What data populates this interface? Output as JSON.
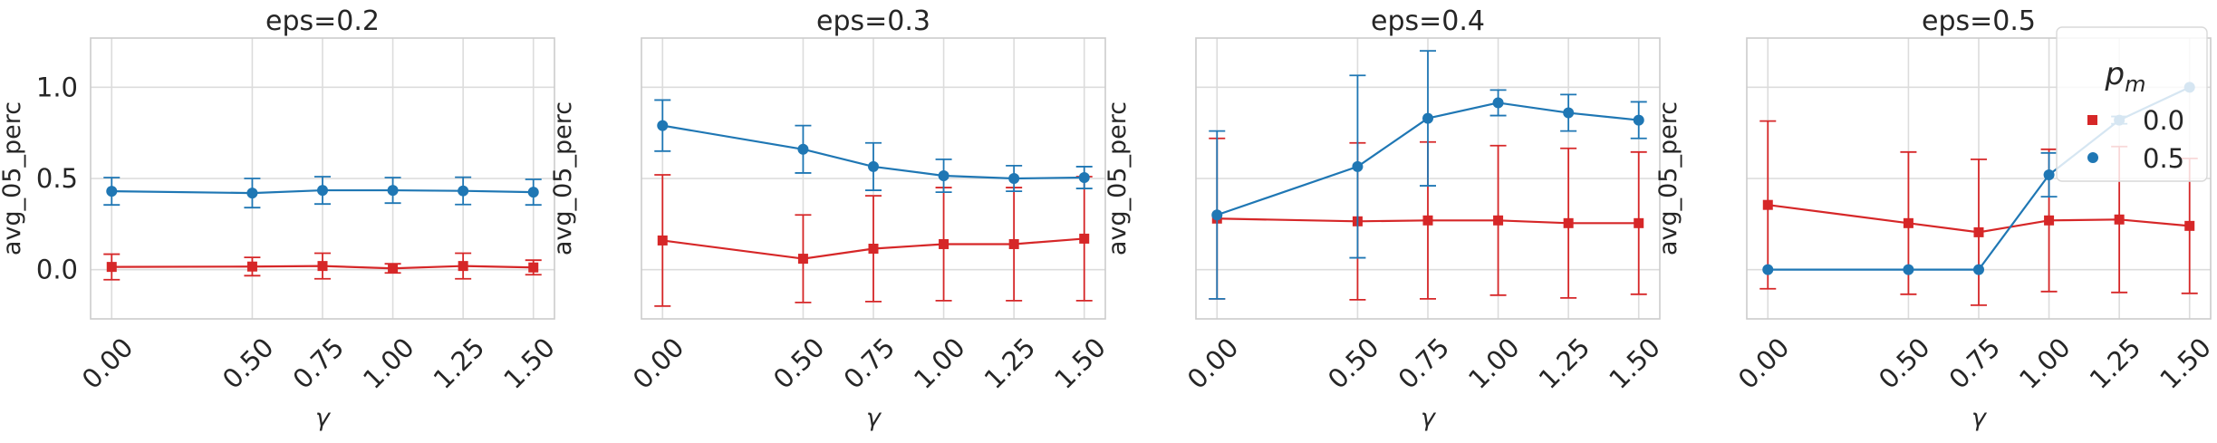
{
  "colors": {
    "series_0.0": "#d62728",
    "series_0.5": "#1f77b4",
    "grid": "#dcdcdc",
    "frame": "#cccccc"
  },
  "legend": {
    "title_base": "p",
    "title_sub": "m",
    "labels": [
      "0.0",
      "0.5"
    ],
    "placement": "upper-right of last panel"
  },
  "chart_data": [
    {
      "type": "line",
      "title": "eps=0.2",
      "xlabel": "γ",
      "ylabel": "avg_05_perc",
      "x": [
        0.0,
        0.5,
        0.75,
        1.0,
        1.25,
        1.5
      ],
      "x_tick_labels": [
        "0.00",
        "0.50",
        "0.75",
        "1.00",
        "1.25",
        "1.50"
      ],
      "y_tick_labels": [
        "0.0",
        "0.5",
        "1.0"
      ],
      "y_ticks": [
        0.0,
        0.5,
        1.0
      ],
      "ylim": [
        -0.27,
        1.27
      ],
      "grid": true,
      "series": [
        {
          "name": "0.0",
          "marker": "square",
          "values": [
            0.015,
            0.017,
            0.02,
            0.007,
            0.02,
            0.012
          ],
          "err": [
            0.07,
            0.05,
            0.07,
            0.025,
            0.07,
            0.04
          ]
        },
        {
          "name": "0.5",
          "marker": "circle",
          "values": [
            0.43,
            0.42,
            0.435,
            0.435,
            0.432,
            0.425
          ],
          "err": [
            0.075,
            0.08,
            0.075,
            0.07,
            0.075,
            0.07
          ]
        }
      ]
    },
    {
      "type": "line",
      "title": "eps=0.3",
      "xlabel": "γ",
      "ylabel": "avg_05_perc",
      "x": [
        0.0,
        0.5,
        0.75,
        1.0,
        1.25,
        1.5
      ],
      "x_tick_labels": [
        "0.00",
        "0.50",
        "0.75",
        "1.00",
        "1.25",
        "1.50"
      ],
      "y_tick_labels": [],
      "y_ticks": [
        0.0,
        0.5,
        1.0
      ],
      "ylim": [
        -0.27,
        1.27
      ],
      "grid": true,
      "series": [
        {
          "name": "0.0",
          "marker": "square",
          "values": [
            0.16,
            0.06,
            0.115,
            0.14,
            0.14,
            0.17
          ],
          "err": [
            0.36,
            0.24,
            0.29,
            0.31,
            0.31,
            0.34
          ]
        },
        {
          "name": "0.5",
          "marker": "circle",
          "values": [
            0.79,
            0.66,
            0.565,
            0.515,
            0.5,
            0.505
          ],
          "err": [
            0.14,
            0.13,
            0.13,
            0.09,
            0.07,
            0.06
          ]
        }
      ]
    },
    {
      "type": "line",
      "title": "eps=0.4",
      "xlabel": "γ",
      "ylabel": "avg_05_perc",
      "x": [
        0.0,
        0.5,
        0.75,
        1.0,
        1.25,
        1.5
      ],
      "x_tick_labels": [
        "0.00",
        "0.50",
        "0.75",
        "1.00",
        "1.25",
        "1.50"
      ],
      "y_tick_labels": [],
      "y_ticks": [
        0.0,
        0.5,
        1.0
      ],
      "ylim": [
        -0.27,
        1.27
      ],
      "grid": true,
      "series": [
        {
          "name": "0.0",
          "marker": "square",
          "values": [
            0.28,
            0.265,
            0.27,
            0.27,
            0.255,
            0.255
          ],
          "err": [
            0.44,
            0.43,
            0.43,
            0.41,
            0.41,
            0.39
          ]
        },
        {
          "name": "0.5",
          "marker": "circle",
          "values": [
            0.3,
            0.565,
            0.83,
            0.915,
            0.86,
            0.82
          ],
          "err": [
            0.46,
            0.5,
            0.37,
            0.07,
            0.1,
            0.1
          ]
        }
      ]
    },
    {
      "type": "line",
      "title": "eps=0.5",
      "xlabel": "γ",
      "ylabel": "avg_05_perc",
      "x": [
        0.0,
        0.5,
        0.75,
        1.0,
        1.25,
        1.5
      ],
      "x_tick_labels": [
        "0.00",
        "0.50",
        "0.75",
        "1.00",
        "1.25",
        "1.50"
      ],
      "y_tick_labels": [],
      "y_ticks": [
        0.0,
        0.5,
        1.0
      ],
      "ylim": [
        -0.27,
        1.27
      ],
      "grid": true,
      "series": [
        {
          "name": "0.0",
          "marker": "square",
          "values": [
            0.355,
            0.255,
            0.205,
            0.27,
            0.275,
            0.24
          ],
          "err": [
            0.46,
            0.39,
            0.4,
            0.39,
            0.4,
            0.37
          ]
        },
        {
          "name": "0.5",
          "marker": "circle",
          "values": [
            0.0,
            0.0,
            0.0,
            0.52,
            0.82,
            1.0
          ],
          "err": [
            0,
            0,
            0,
            0.12,
            0.02,
            0
          ]
        }
      ]
    }
  ]
}
